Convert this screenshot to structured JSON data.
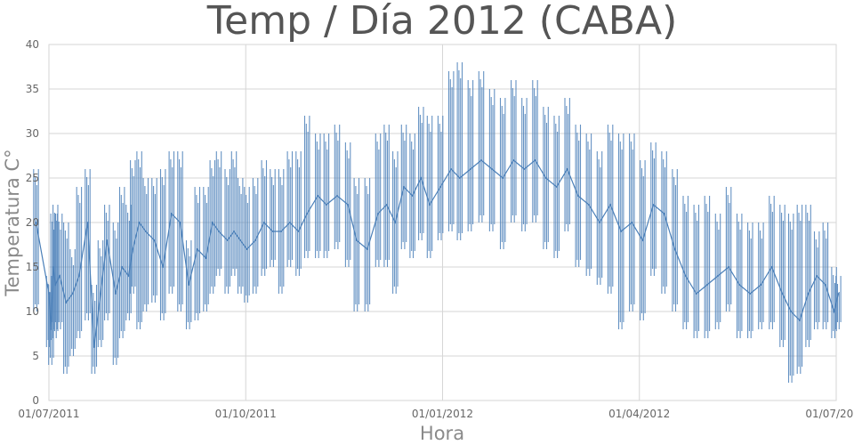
{
  "chart_data": {
    "type": "line",
    "title": "Temp / Día 2012 (CABA)",
    "xlabel": "Hora",
    "ylabel": "Temperatura C°",
    "x_tick_labels": [
      "01/07/2011",
      "01/10/2011",
      "01/01/2012",
      "01/04/2012",
      "01/07/2012"
    ],
    "x_range": [
      "2011-07-01",
      "2012-07-01"
    ],
    "ylim": [
      0,
      40
    ],
    "y_ticks": [
      0,
      5,
      10,
      15,
      20,
      25,
      30,
      35,
      40
    ],
    "grid": true,
    "legend": "none",
    "series_color": "#4a7fb8",
    "series": [
      {
        "x": [
          "2011-06-25",
          "2011-07-01",
          "2011-07-02",
          "2011-07-03",
          "2011-07-04",
          "2011-07-06",
          "2011-07-09",
          "2011-07-12",
          "2011-07-15",
          "2011-07-19",
          "2011-07-22",
          "2011-07-25",
          "2011-07-28",
          "2011-08-01",
          "2011-08-04",
          "2011-08-07",
          "2011-08-09",
          "2011-08-12",
          "2011-08-15",
          "2011-08-19",
          "2011-08-23",
          "2011-08-27",
          "2011-08-31",
          "2011-09-04",
          "2011-09-08",
          "2011-09-12",
          "2011-09-15",
          "2011-09-18",
          "2011-09-22",
          "2011-09-25",
          "2011-09-28",
          "2011-10-01",
          "2011-10-05",
          "2011-10-09",
          "2011-10-13",
          "2011-10-17",
          "2011-10-21",
          "2011-10-25",
          "2011-10-29",
          "2011-11-03",
          "2011-11-07",
          "2011-11-12",
          "2011-11-17",
          "2011-11-21",
          "2011-11-26",
          "2011-12-01",
          "2011-12-05",
          "2011-12-09",
          "2011-12-13",
          "2011-12-17",
          "2011-12-21",
          "2011-12-25",
          "2011-12-30",
          "2012-01-04",
          "2012-01-08",
          "2012-01-13",
          "2012-01-18",
          "2012-01-23",
          "2012-01-28",
          "2012-02-02",
          "2012-02-07",
          "2012-02-12",
          "2012-02-17",
          "2012-02-22",
          "2012-02-27",
          "2012-03-03",
          "2012-03-08",
          "2012-03-13",
          "2012-03-18",
          "2012-03-23",
          "2012-03-28",
          "2012-04-02",
          "2012-04-07",
          "2012-04-12",
          "2012-04-17",
          "2012-04-22",
          "2012-04-27",
          "2012-05-02",
          "2012-05-07",
          "2012-05-12",
          "2012-05-17",
          "2012-05-22",
          "2012-05-27",
          "2012-06-01",
          "2012-06-06",
          "2012-06-10",
          "2012-06-14",
          "2012-06-18",
          "2012-06-22",
          "2012-06-26",
          "2012-06-30",
          "2012-07-02"
        ],
        "y": [
          20,
          12,
          8,
          15,
          13,
          14,
          11,
          12,
          14,
          20,
          6,
          12,
          18,
          12,
          15,
          14,
          17,
          20,
          19,
          18,
          15,
          21,
          20,
          13,
          17,
          16,
          20,
          19,
          18,
          19,
          18,
          17,
          18,
          20,
          19,
          19,
          20,
          19,
          21,
          23,
          22,
          23,
          22,
          18,
          17,
          21,
          22,
          20,
          24,
          23,
          25,
          22,
          24,
          26,
          25,
          26,
          27,
          26,
          25,
          27,
          26,
          27,
          25,
          24,
          26,
          23,
          22,
          20,
          22,
          19,
          20,
          18,
          22,
          21,
          17,
          14,
          12,
          13,
          14,
          15,
          13,
          12,
          13,
          15,
          12,
          10,
          9,
          12,
          14,
          13,
          10,
          12
        ],
        "min": [
          10,
          6,
          4,
          8,
          7,
          8,
          3,
          5,
          7,
          9,
          3,
          6,
          9,
          4,
          7,
          9,
          12,
          8,
          10,
          11,
          9,
          12,
          10,
          8,
          9,
          10,
          12,
          14,
          12,
          14,
          12,
          11,
          12,
          14,
          15,
          12,
          15,
          14,
          16,
          16,
          16,
          17,
          15,
          10,
          10,
          15,
          15,
          12,
          17,
          16,
          18,
          16,
          18,
          19,
          18,
          19,
          20,
          19,
          17,
          20,
          19,
          20,
          17,
          16,
          19,
          15,
          14,
          13,
          12,
          8,
          10,
          9,
          14,
          12,
          10,
          8,
          7,
          7,
          8,
          10,
          7,
          7,
          8,
          8,
          6,
          2,
          3,
          6,
          8,
          8,
          7,
          8
        ],
        "max": [
          26,
          14,
          13,
          21,
          22,
          21,
          20,
          17,
          24,
          26,
          13,
          18,
          22,
          20,
          24,
          22,
          27,
          28,
          25,
          25,
          26,
          28,
          28,
          18,
          24,
          24,
          27,
          28,
          26,
          28,
          25,
          24,
          25,
          27,
          26,
          26,
          28,
          28,
          32,
          30,
          30,
          31,
          29,
          25,
          25,
          30,
          31,
          28,
          31,
          30,
          33,
          32,
          32,
          37,
          38,
          36,
          37,
          35,
          34,
          36,
          34,
          36,
          33,
          32,
          34,
          31,
          30,
          28,
          31,
          30,
          30,
          27,
          29,
          28,
          26,
          23,
          22,
          23,
          21,
          24,
          21,
          20,
          20,
          23,
          22,
          21,
          22,
          22,
          19,
          20,
          15,
          14
        ]
      }
    ]
  }
}
